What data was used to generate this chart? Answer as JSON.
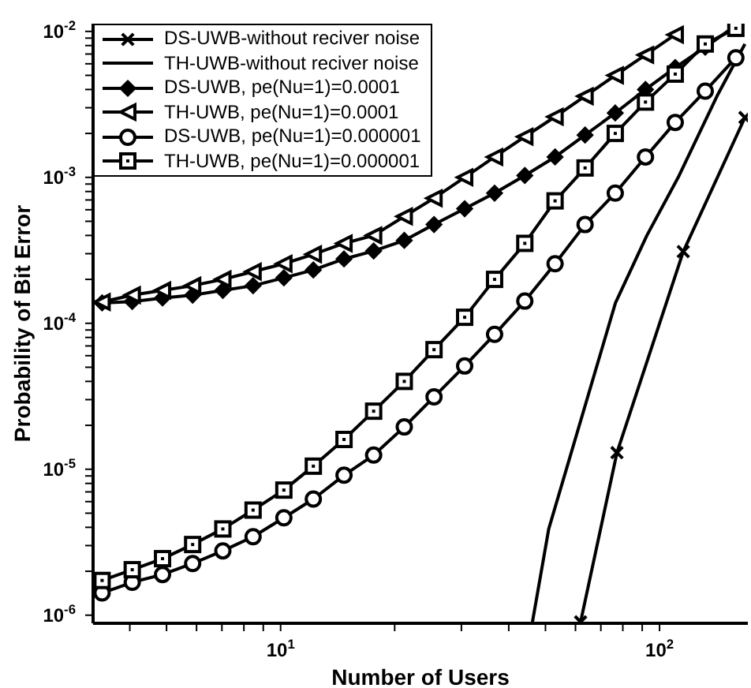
{
  "chart_data": {
    "type": "line",
    "xlabel": "Number of Users",
    "ylabel": "Probability of Bit Error",
    "log": "xy",
    "grid": false,
    "legend": "top left",
    "xlim": [
      3.2,
      171
    ],
    "ylim": [
      8.8e-07,
      0.0113
    ],
    "xticks": [
      {
        "value": 4,
        "label": null
      },
      {
        "value": 5,
        "label": null
      },
      {
        "value": 6,
        "label": null
      },
      {
        "value": 7,
        "label": null
      },
      {
        "value": 8,
        "label": null
      },
      {
        "value": 9,
        "label": null
      },
      {
        "value": 10,
        "label": "10$^{1}$"
      },
      {
        "value": 20,
        "label": null
      },
      {
        "value": 30,
        "label": null
      },
      {
        "value": 40,
        "label": null
      },
      {
        "value": 50,
        "label": null
      },
      {
        "value": 60,
        "label": null
      },
      {
        "value": 70,
        "label": null
      },
      {
        "value": 80,
        "label": null
      },
      {
        "value": 90,
        "label": null
      },
      {
        "value": 100,
        "label": "10$^{2}$"
      }
    ],
    "yticks": [
      {
        "value": 1e-06,
        "label": "10$^{-6}$"
      },
      {
        "value": 2e-06,
        "label": null
      },
      {
        "value": 3e-06,
        "label": null
      },
      {
        "value": 4e-06,
        "label": null
      },
      {
        "value": 5e-06,
        "label": null
      },
      {
        "value": 6e-06,
        "label": null
      },
      {
        "value": 7e-06,
        "label": null
      },
      {
        "value": 8e-06,
        "label": null
      },
      {
        "value": 9e-06,
        "label": null
      },
      {
        "value": 1e-05,
        "label": "10$^{-5}$"
      },
      {
        "value": 2e-05,
        "label": null
      },
      {
        "value": 3e-05,
        "label": null
      },
      {
        "value": 4e-05,
        "label": null
      },
      {
        "value": 5e-05,
        "label": null
      },
      {
        "value": 6e-05,
        "label": null
      },
      {
        "value": 7e-05,
        "label": null
      },
      {
        "value": 8e-05,
        "label": null
      },
      {
        "value": 9e-05,
        "label": null
      },
      {
        "value": 0.0001,
        "label": "10$^{-4}$"
      },
      {
        "value": 0.0002,
        "label": null
      },
      {
        "value": 0.0003,
        "label": null
      },
      {
        "value": 0.0004,
        "label": null
      },
      {
        "value": 0.0005,
        "label": null
      },
      {
        "value": 0.0006,
        "label": null
      },
      {
        "value": 0.0007,
        "label": null
      },
      {
        "value": 0.0008,
        "label": null
      },
      {
        "value": 0.0009,
        "label": null
      },
      {
        "value": 0.001,
        "label": "10$^{-3}$"
      },
      {
        "value": 0.002,
        "label": null
      },
      {
        "value": 0.003,
        "label": null
      },
      {
        "value": 0.004,
        "label": null
      },
      {
        "value": 0.005,
        "label": null
      },
      {
        "value": 0.006,
        "label": null
      },
      {
        "value": 0.007,
        "label": null
      },
      {
        "value": 0.008,
        "label": null
      },
      {
        "value": 0.009,
        "label": null
      },
      {
        "value": 0.01,
        "label": "10$^{-2}$"
      }
    ],
    "series": [
      {
        "name": "DS-UWB-without reciver noise",
        "color": "#000000",
        "marker": "cross",
        "x": [
          61.9,
          77.2,
          115.5,
          168
        ],
        "values": [
          9e-07,
          1.3e-05,
          0.00031,
          0.00257
        ]
      },
      {
        "name": "TH-UWB-without reciver noise",
        "color": "#000000",
        "marker": "none",
        "x": [
          46.2,
          51.0,
          76.5,
          92.6,
          112,
          142.5,
          168
        ],
        "values": [
          9e-07,
          3.9e-06,
          0.000138,
          0.0004,
          0.001,
          0.0037,
          0.0082
        ]
      },
      {
        "name": "DS-UWB, pe(Nu=1)=0.0001",
        "color": "#000000",
        "marker": "diamond",
        "x": [
          3.38,
          4.06,
          4.88,
          5.86,
          7.04,
          8.46,
          10.2,
          12.2,
          14.7,
          17.6,
          21.2,
          25.4,
          30.6,
          36.7,
          44.1,
          53.0,
          63.6,
          76.4,
          91.8,
          110,
          132,
          159
        ],
        "values": [
          0.000138,
          0.000141,
          0.000149,
          0.000156,
          0.000168,
          0.000181,
          0.000205,
          0.000232,
          0.000276,
          0.000313,
          0.00037,
          0.000475,
          0.00061,
          0.00078,
          0.00103,
          0.00138,
          0.00195,
          0.00276,
          0.004,
          0.00566,
          0.0078,
          0.011
        ]
      },
      {
        "name": "TH-UWB, pe(Nu=1)=0.0001",
        "color": "#000000",
        "marker": "triangle",
        "x": [
          3.38,
          4.06,
          4.88,
          5.86,
          7.04,
          8.46,
          10.2,
          12.2,
          14.7,
          17.6,
          21.2,
          25.4,
          30.6,
          36.7,
          44.1,
          53.0,
          63.6,
          76.4,
          91.8,
          110
        ],
        "values": [
          0.00014,
          0.000156,
          0.000168,
          0.000181,
          0.0002,
          0.000226,
          0.000256,
          0.000297,
          0.000353,
          0.0004,
          0.00054,
          0.00072,
          0.001,
          0.00138,
          0.0019,
          0.0026,
          0.0036,
          0.005,
          0.0069,
          0.0095
        ]
      },
      {
        "name": "DS-UWB, pe(Nu=1)=0.000001",
        "color": "#000000",
        "marker": "circle",
        "x": [
          3.38,
          4.06,
          4.88,
          5.86,
          7.04,
          8.46,
          10.2,
          12.2,
          14.7,
          17.6,
          21.2,
          25.4,
          30.6,
          36.7,
          44.1,
          53.0,
          63.6,
          76.4,
          91.8,
          110,
          132,
          159
        ],
        "values": [
          1.42e-06,
          1.68e-06,
          1.9e-06,
          2.26e-06,
          2.76e-06,
          3.45e-06,
          4.65e-06,
          6.25e-06,
          9.1e-06,
          1.25e-05,
          1.95e-05,
          3.13e-05,
          5.1e-05,
          8.4e-05,
          0.000142,
          0.000256,
          0.000475,
          0.00078,
          0.00138,
          0.00238,
          0.0039,
          0.0066
        ]
      },
      {
        "name": "TH-UWB, pe(Nu=1)=0.000001",
        "color": "#000000",
        "marker": "square",
        "x": [
          3.38,
          4.06,
          4.88,
          5.86,
          7.04,
          8.46,
          10.2,
          12.2,
          14.7,
          17.6,
          21.2,
          25.4,
          30.6,
          36.7,
          44.1,
          53.0,
          63.6,
          76.4,
          91.8,
          110,
          132,
          159
        ],
        "values": [
          1.73e-06,
          2.05e-06,
          2.44e-06,
          3.05e-06,
          3.9e-06,
          5.25e-06,
          7.2e-06,
          1.05e-05,
          1.6e-05,
          2.5e-05,
          4e-05,
          6.6e-05,
          0.00011,
          0.0002,
          0.000353,
          0.00069,
          0.00116,
          0.002,
          0.00328,
          0.0051,
          0.0082,
          0.0105
        ]
      }
    ]
  }
}
